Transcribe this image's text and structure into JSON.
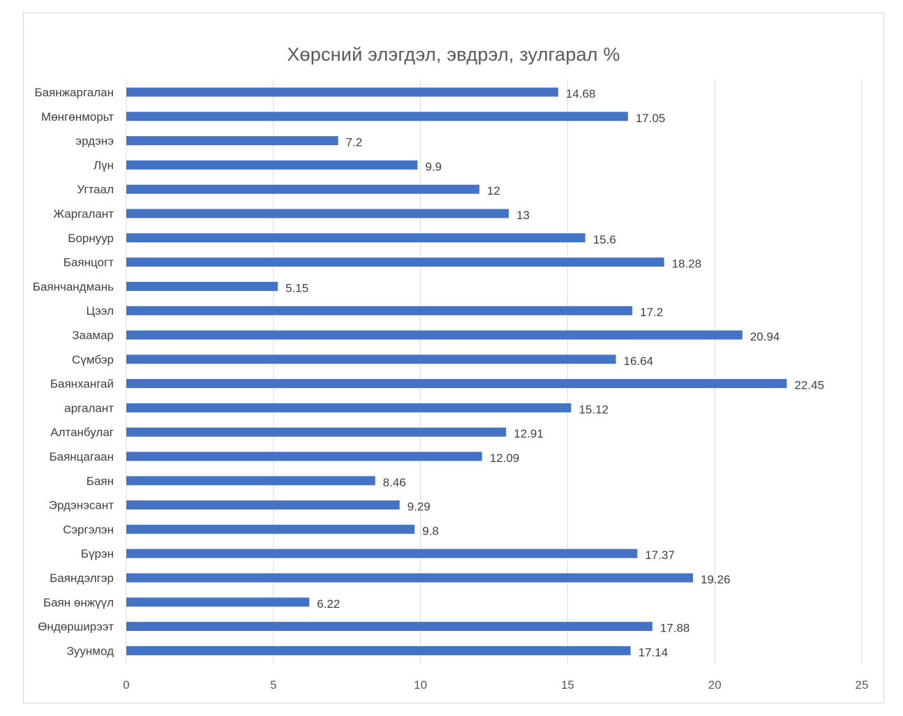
{
  "chart_data": {
    "type": "bar",
    "orientation": "horizontal",
    "title": "Хөрсний элэгдэл, эвдрэл, зулгарал %",
    "xlabel": "",
    "ylabel": "",
    "xlim": [
      0,
      25
    ],
    "xticks": [
      "0",
      "5",
      "10",
      "15",
      "20",
      "25"
    ],
    "grid": true,
    "bar_color": "#4472c4",
    "categories": [
      "Баянжаргалан",
      "Мөнгөнморьт",
      "эрдэнэ",
      "Лүн",
      "Угтаал",
      "Жаргалант",
      "Борнуур",
      "Баянцогт",
      "Баянчандмань",
      "Цээл",
      "Заамар",
      "Сүмбэр",
      "Баянхангай",
      "аргалант",
      "Алтанбулаг",
      "Баянцагаан",
      "Баян",
      "Эрдэнэсант",
      "Сэргэлэн",
      "Бүрэн",
      "Баяндэлгэр",
      "Баян өнжүүл",
      "Өндөрширээт",
      "Зуунмод"
    ],
    "values": [
      14.68,
      17.05,
      7.2,
      9.9,
      12,
      13,
      15.6,
      18.28,
      5.15,
      17.2,
      20.94,
      16.64,
      22.45,
      15.12,
      12.91,
      12.09,
      8.46,
      9.29,
      9.8,
      17.37,
      19.26,
      6.22,
      17.88,
      17.14
    ]
  }
}
